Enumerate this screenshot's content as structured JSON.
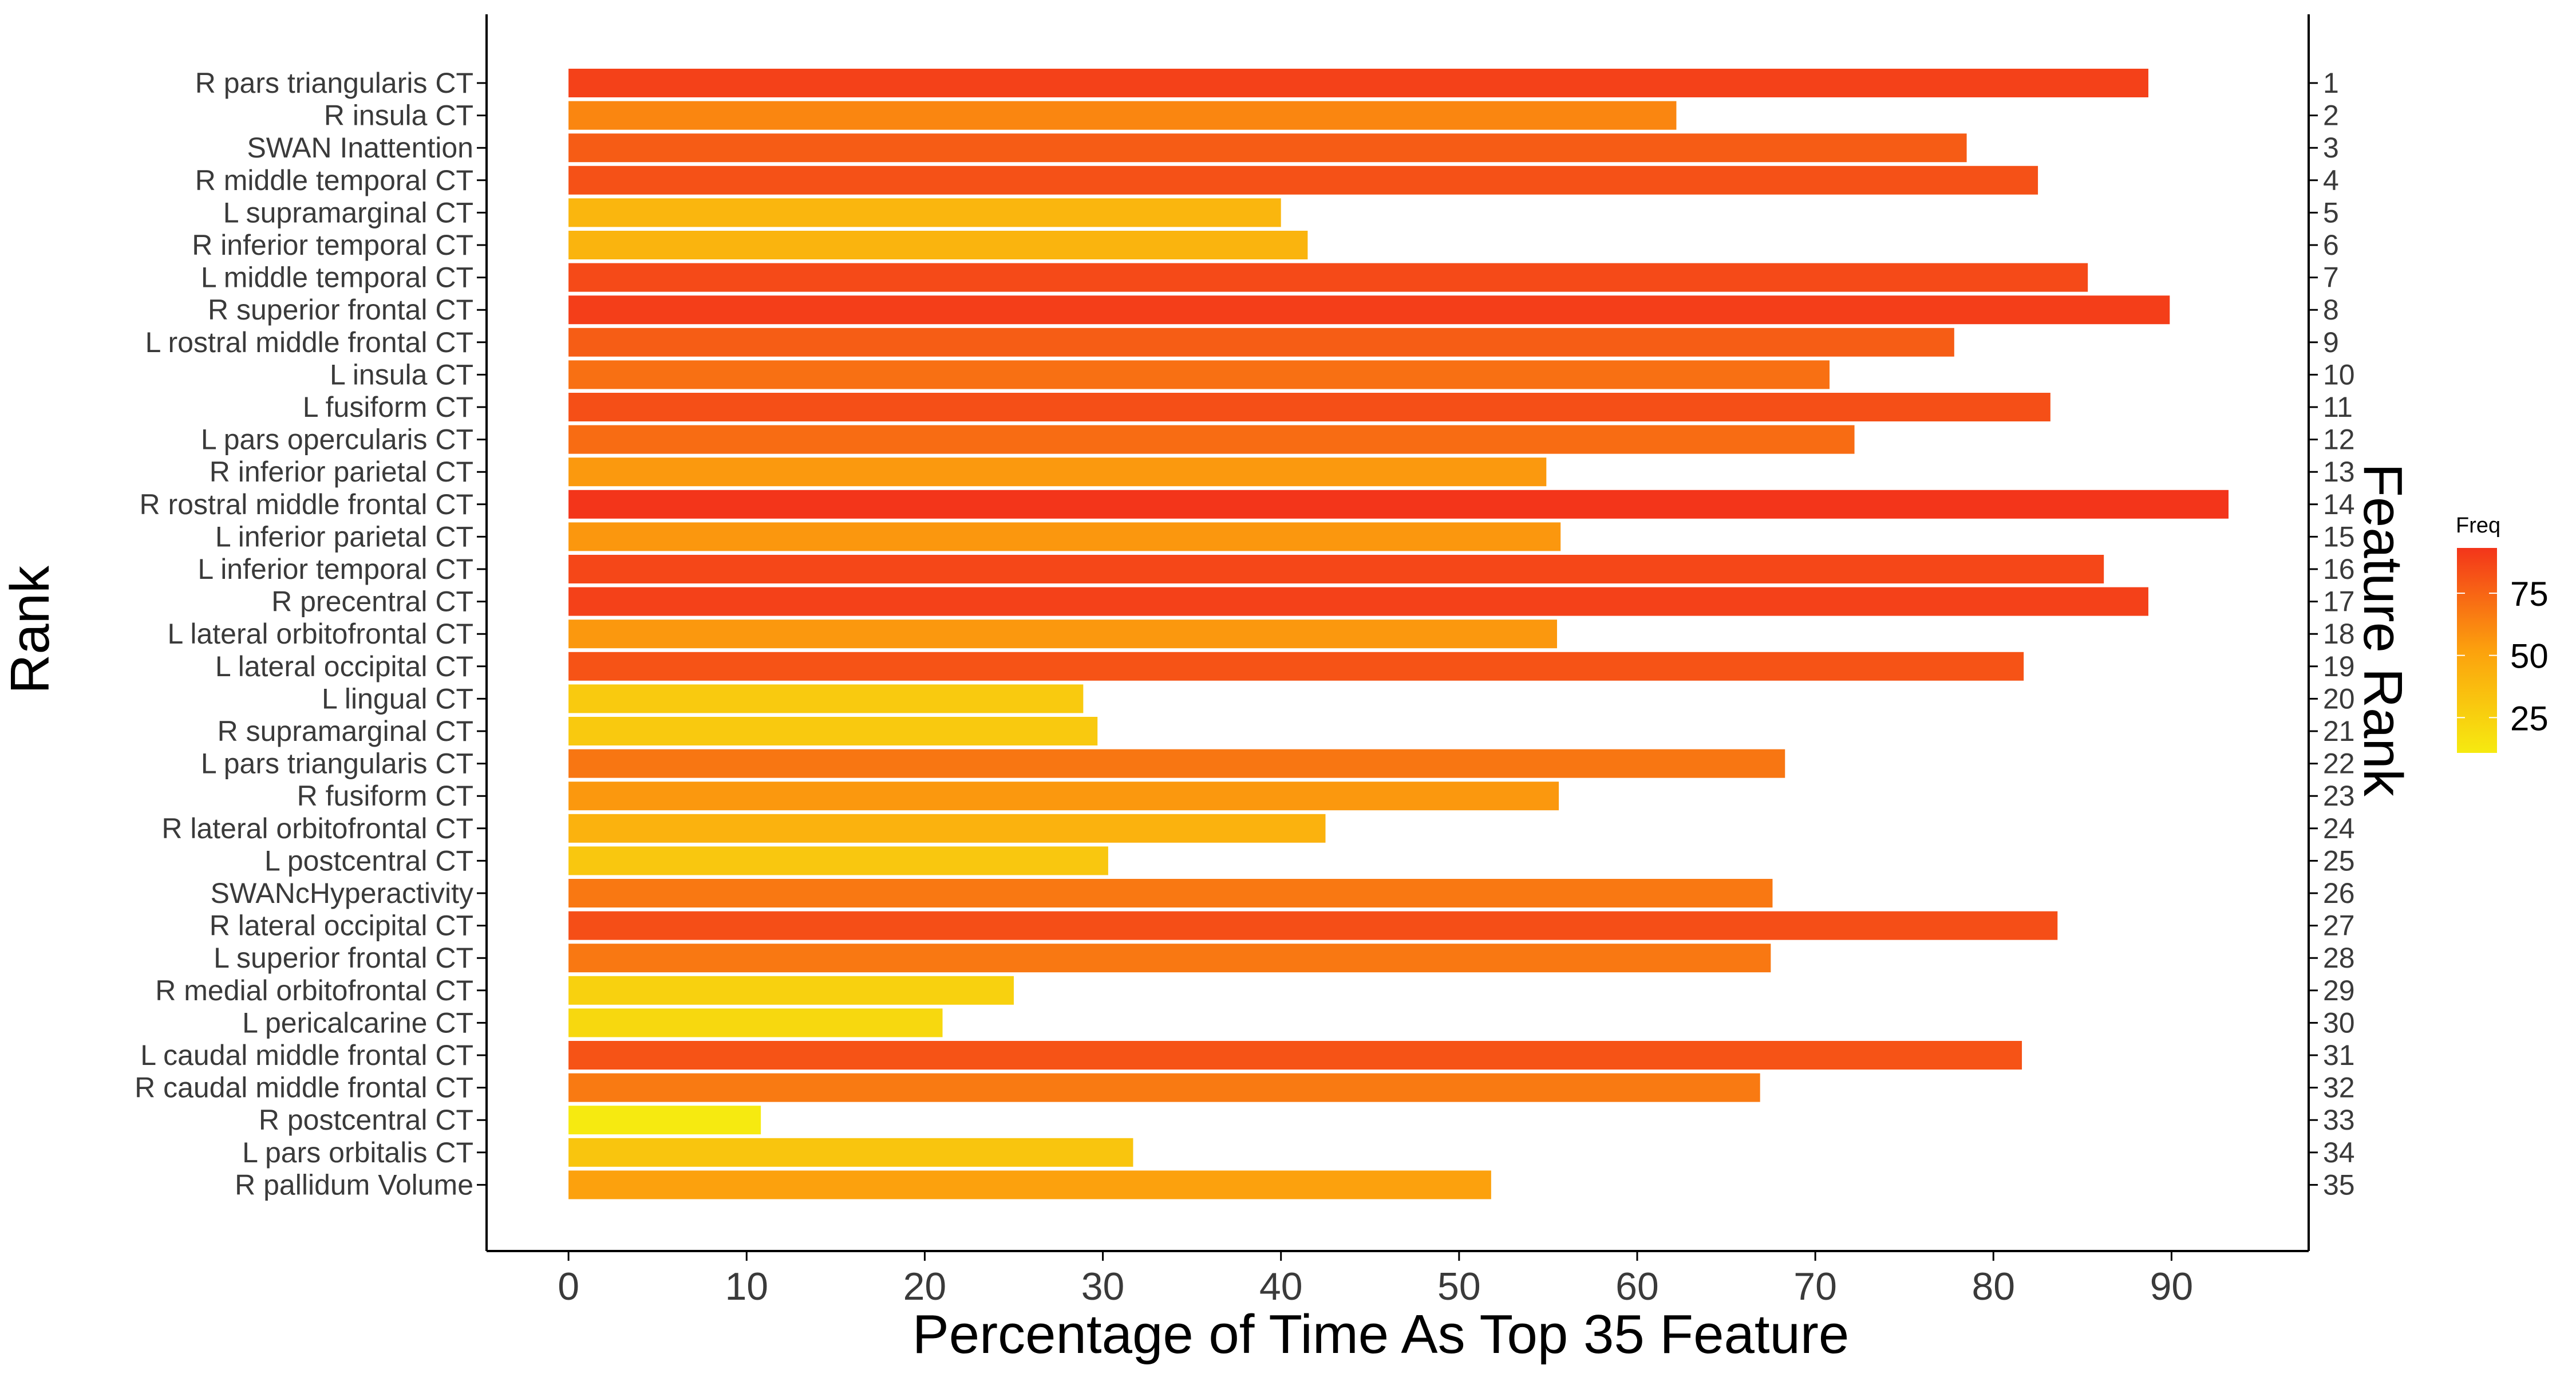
{
  "chart_data": {
    "type": "bar",
    "orientation": "horizontal",
    "title": "",
    "xlabel": "Percentage of Time As Top 35 Feature",
    "ylabel": "Rank",
    "ylabel_right": "Feature Rank",
    "xlim": [
      -4.6,
      97.7
    ],
    "xticks": [
      0,
      10,
      20,
      30,
      40,
      50,
      60,
      70,
      80,
      90
    ],
    "grid": false,
    "legend": {
      "title": "Freq",
      "position": "right",
      "ticks": [
        25,
        50,
        75
      ],
      "range": [
        10.8,
        93.2
      ],
      "color_low": "#f6ea10",
      "color_mid": "#fca10d",
      "color_high": "#f3351a"
    },
    "categories": [
      "R pars triangularis CT",
      "R insula CT",
      "SWAN Inattention",
      "R middle temporal CT",
      "L supramarginal CT",
      "R inferior temporal CT",
      "L middle temporal CT",
      "R superior frontal CT",
      "L rostral middle frontal CT",
      "L insula CT",
      "L fusiform CT",
      "L pars opercularis CT",
      "R inferior parietal CT",
      "R rostral middle frontal  CT",
      "L inferior parietal CT",
      "L inferior temporal CT",
      "R precentral CT ",
      "L lateral orbitofrontal CT",
      "L lateral occipital CT",
      "L lingual CT",
      "R supramarginal  CT",
      "L pars triangularis CT",
      "R fusiform CT",
      "R lateral orbitofrontal CT",
      "L postcentral  CT",
      "SWANcHyperactivity",
      "R lateral occipital CT",
      "L superior frontal CT",
      "R medial orbitofrontal CT",
      "L pericalcarine CT",
      "L caudal middle frontal CT",
      "R caudal middle frontal CT",
      "R postcentral  CT",
      "L pars orbitalis CT",
      "R pallidum Volume"
    ],
    "ranks": [
      "1",
      "2",
      "3",
      "4",
      "5",
      "6",
      "7",
      "8",
      "9",
      "10",
      "11",
      "12",
      "13",
      "14",
      "15",
      "16",
      "17",
      "18",
      "19",
      "20",
      "21",
      "22",
      "23",
      "24",
      "25",
      "26",
      "27",
      "28",
      "29",
      "30",
      "31",
      "32",
      "33",
      "34",
      "35"
    ],
    "values": [
      88.7,
      62.2,
      78.5,
      82.5,
      40.0,
      41.5,
      85.3,
      89.9,
      77.8,
      70.8,
      83.2,
      72.2,
      54.9,
      93.2,
      55.7,
      86.2,
      88.7,
      55.5,
      81.7,
      28.9,
      29.7,
      68.3,
      55.6,
      42.5,
      30.3,
      67.6,
      83.6,
      67.5,
      25.0,
      21.0,
      81.6,
      66.9,
      10.8,
      31.7,
      51.8
    ]
  }
}
